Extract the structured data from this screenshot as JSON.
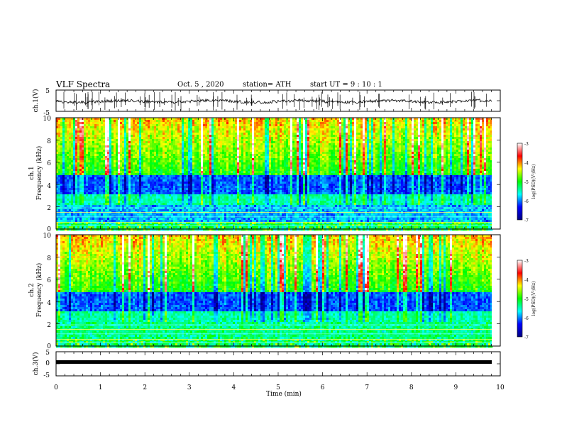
{
  "header": {
    "title": "VLF Spectra",
    "date": "Oct. 5 , 2020",
    "station": "station= ATH",
    "start": "start UT = 9 : 10 : 1"
  },
  "chart_data": [
    {
      "id": "ch1-waveform",
      "type": "line",
      "ylabel": "ch.1(V)",
      "yticks": [
        "5",
        "-5"
      ],
      "ylim": [
        -5,
        5
      ],
      "xlim": [
        0,
        10
      ],
      "color": "#000000"
    },
    {
      "id": "ch1-spectrogram",
      "type": "heatmap",
      "ylabel": "ch.1\nFrequency (kHz)",
      "ylabel_lines": [
        "ch.1",
        "Frequency (kHz)"
      ],
      "yticks": [
        "10",
        "8",
        "6",
        "4",
        "2",
        "0"
      ],
      "ylim": [
        0,
        10
      ],
      "xlim": [
        0,
        9.8
      ],
      "colorbar": {
        "label": "log(PSD)(V²/Hz)",
        "ticks": [
          "-3",
          "-4",
          "-5",
          "-6",
          "-7"
        ],
        "range": [
          -7,
          -3
        ],
        "colors": [
          "#000080",
          "#0000ff",
          "#00ffff",
          "#00ff00",
          "#ffff00",
          "#ff0000",
          "#ffffff"
        ]
      }
    },
    {
      "id": "ch2-spectrogram",
      "type": "heatmap",
      "ylabel": "ch.2\nFrequency (kHz)",
      "ylabel_lines": [
        "ch.2",
        "Frequency (kHz)"
      ],
      "yticks": [
        "10",
        "8",
        "6",
        "4",
        "2",
        "0"
      ],
      "ylim": [
        0,
        10
      ],
      "xlim": [
        0,
        9.8
      ],
      "colorbar": {
        "label": "log(PSD)(V²/Hz)",
        "ticks": [
          "-3",
          "-4",
          "-5",
          "-6",
          "-7"
        ],
        "range": [
          -7,
          -3
        ],
        "colors": [
          "#000080",
          "#0000ff",
          "#00ffff",
          "#00ff00",
          "#ffff00",
          "#ff0000",
          "#ffffff"
        ]
      }
    },
    {
      "id": "ch3-waveform",
      "type": "line",
      "ylabel": "ch.3(V)",
      "yticks": [
        "5",
        "0",
        "-5"
      ],
      "ylim": [
        -5,
        5
      ],
      "xlim": [
        0,
        10
      ],
      "color": "#000000"
    }
  ],
  "x_axis": {
    "label": "Time (min)",
    "ticks": [
      "0",
      "1",
      "2",
      "3",
      "4",
      "5",
      "6",
      "7",
      "8",
      "9",
      "10"
    ],
    "range": [
      0,
      10
    ]
  }
}
